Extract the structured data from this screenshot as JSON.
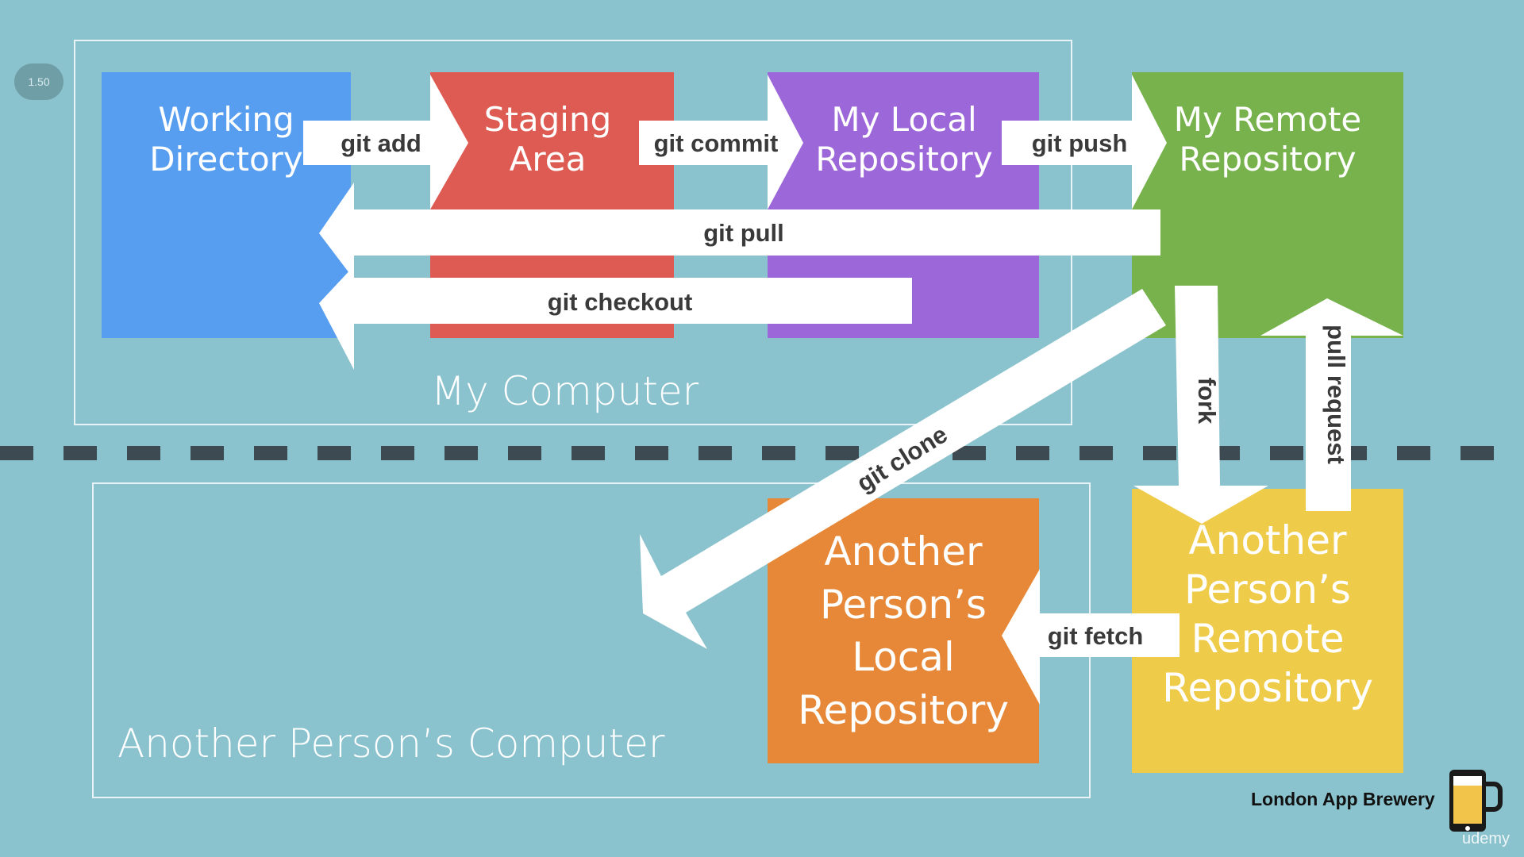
{
  "version_badge": "1.50",
  "zones": {
    "my_computer": "My Computer",
    "other_computer": "Another Person’s Computer"
  },
  "boxes": {
    "working_directory": {
      "title": "Working\nDirectory",
      "color": "#579ef0"
    },
    "staging_area": {
      "title": "Staging\nArea",
      "color": "#dd5b52"
    },
    "my_local_repo": {
      "title": "My Local\nRepository",
      "color": "#9c67d9"
    },
    "my_remote_repo": {
      "title": "My Remote\nRepository",
      "color": "#77b24d"
    },
    "other_local_repo": {
      "title": "Another\nPerson’s\nLocal\nRepository",
      "color": "#e68838"
    },
    "other_remote_repo": {
      "title": "Another\nPerson’s\nRemote\nRepository",
      "color": "#efcb4a"
    }
  },
  "commands": {
    "git_add": "git add",
    "git_commit": "git commit",
    "git_push": "git push",
    "git_pull": "git pull",
    "git_checkout": "git checkout",
    "git_clone": "git clone",
    "fork": "fork",
    "pull_request": "pull request",
    "git_fetch": "git fetch"
  },
  "branding": {
    "name": "London App Brewery",
    "platform": "udemy"
  }
}
